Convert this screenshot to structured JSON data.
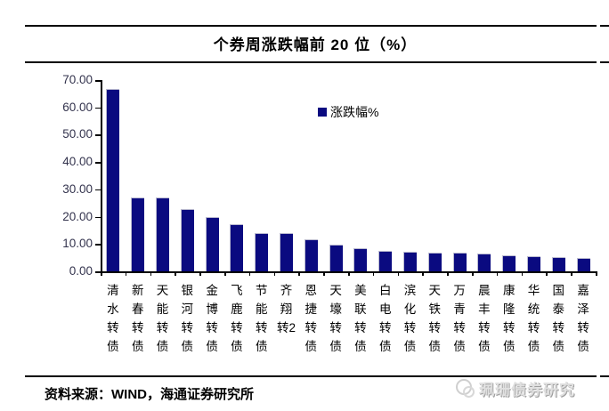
{
  "header": {
    "title": "个券周涨跌幅前 20 位（%）"
  },
  "legend": {
    "label": "涨跌幅%",
    "marker_color": "#0a0a80"
  },
  "chart_data": {
    "type": "bar",
    "title": "个券周涨跌幅前 20 位（%）",
    "series_name": "涨跌幅%",
    "categories": [
      "清水转债",
      "新春转债",
      "天能转债",
      "银河转债",
      "金博转债",
      "飞鹿转债",
      "节能转债",
      "齐翔转2",
      "恩捷转债",
      "天壕转债",
      "美联转债",
      "白电转债",
      "滨化转债",
      "天铁转债",
      "万青转债",
      "晨丰转债",
      "康隆转债",
      "华统转债",
      "国泰转债",
      "嘉泽转债"
    ],
    "values": [
      66.6,
      27.0,
      26.9,
      22.8,
      20.0,
      17.1,
      14.1,
      14.0,
      11.7,
      9.9,
      8.4,
      7.5,
      7.1,
      6.9,
      6.7,
      6.5,
      5.9,
      5.6,
      5.3,
      5.0
    ],
    "xlabel": "",
    "ylabel": "",
    "ylim": [
      0,
      70
    ],
    "ytick_step": 10,
    "ytick_decimals": 2,
    "grid": false,
    "legend_position": "upper center",
    "bar_color": "#0a0a80",
    "axis_color": "#000000",
    "ytick_label_color": "#33334d"
  },
  "footer": {
    "source": "资料来源：WIND，海通证券研究所",
    "watermark": "珮珊债券研究"
  }
}
